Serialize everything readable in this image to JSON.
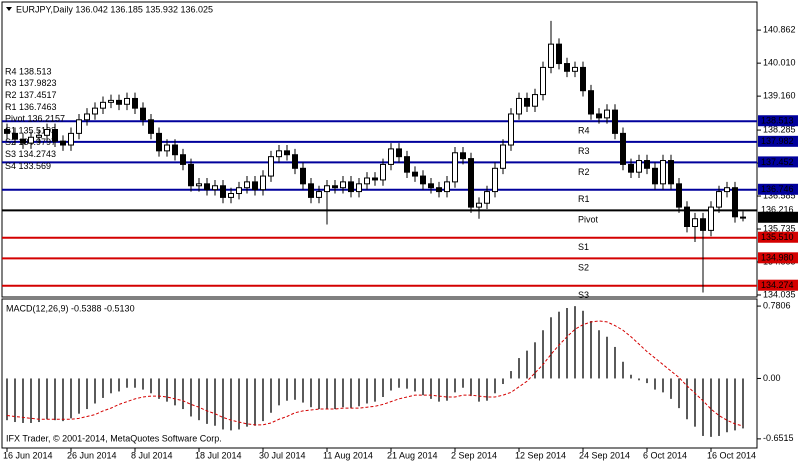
{
  "chart_data": [
    {
      "type": "candlestick",
      "title": "EURJPY,Daily  136.042 136.185 135.932 136.025",
      "categories": [
        "16 Jun 2014",
        null,
        null,
        null,
        null,
        null,
        null,
        null,
        "26 Jun 2014",
        null,
        null,
        null,
        null,
        null,
        null,
        null,
        "8 Jul 2014",
        null,
        null,
        null,
        null,
        null,
        null,
        null,
        "18 Jul 2014",
        null,
        null,
        null,
        null,
        null,
        null,
        null,
        "30 Jul 2014",
        null,
        null,
        null,
        null,
        null,
        null,
        null,
        "11 Aug 2014",
        null,
        null,
        null,
        null,
        null,
        null,
        null,
        "21 Aug 2014",
        null,
        null,
        null,
        null,
        null,
        null,
        null,
        "2 Sep 2014",
        null,
        null,
        null,
        null,
        null,
        null,
        null,
        "12 Sep 2014",
        null,
        null,
        null,
        null,
        null,
        null,
        null,
        "24 Sep 2014",
        null,
        null,
        null,
        null,
        null,
        null,
        null,
        "6 Oct 2014",
        null,
        null,
        null,
        null,
        null,
        null,
        null,
        "16 Oct 2014",
        null,
        null,
        null,
        null
      ],
      "ohlc": [
        [
          138.3,
          138.45,
          138.05,
          138.2
        ],
        [
          138.2,
          138.35,
          137.9,
          138.05
        ],
        [
          138.05,
          138.2,
          137.8,
          137.95
        ],
        [
          137.95,
          138.25,
          137.8,
          138.1
        ],
        [
          138.1,
          138.3,
          137.95,
          138.15
        ],
        [
          138.15,
          138.45,
          138.0,
          138.3
        ],
        [
          138.3,
          138.45,
          137.85,
          138.0
        ],
        [
          138.0,
          138.15,
          137.75,
          137.9
        ],
        [
          137.9,
          138.35,
          137.75,
          138.2
        ],
        [
          138.2,
          138.7,
          138.05,
          138.55
        ],
        [
          138.55,
          138.85,
          138.4,
          138.7
        ],
        [
          138.7,
          139.0,
          138.55,
          138.85
        ],
        [
          138.85,
          139.15,
          138.7,
          139.0
        ],
        [
          139.0,
          139.2,
          138.85,
          139.05
        ],
        [
          139.05,
          139.2,
          138.8,
          138.95
        ],
        [
          138.95,
          139.25,
          138.8,
          139.1
        ],
        [
          139.1,
          139.25,
          138.7,
          138.85
        ],
        [
          138.85,
          139.0,
          138.4,
          138.55
        ],
        [
          138.55,
          138.7,
          138.05,
          138.2
        ],
        [
          138.2,
          138.35,
          137.6,
          137.75
        ],
        [
          137.75,
          138.05,
          137.6,
          137.9
        ],
        [
          137.9,
          138.05,
          137.5,
          137.65
        ],
        [
          137.65,
          137.8,
          137.25,
          137.4
        ],
        [
          137.4,
          137.55,
          136.7,
          136.85
        ],
        [
          136.85,
          137.05,
          136.7,
          136.9
        ],
        [
          136.9,
          137.05,
          136.6,
          136.75
        ],
        [
          136.75,
          137.0,
          136.6,
          136.85
        ],
        [
          136.85,
          137.0,
          136.4,
          136.55
        ],
        [
          136.55,
          136.8,
          136.4,
          136.65
        ],
        [
          136.65,
          136.95,
          136.5,
          136.8
        ],
        [
          136.8,
          137.1,
          136.65,
          136.95
        ],
        [
          136.95,
          137.1,
          136.6,
          136.75
        ],
        [
          136.75,
          137.25,
          136.6,
          137.1
        ],
        [
          137.1,
          137.75,
          136.95,
          137.6
        ],
        [
          137.6,
          137.9,
          137.45,
          137.75
        ],
        [
          137.75,
          137.9,
          137.5,
          137.65
        ],
        [
          137.65,
          137.8,
          137.15,
          137.3
        ],
        [
          137.3,
          137.45,
          136.75,
          136.9
        ],
        [
          136.9,
          137.05,
          136.4,
          136.55
        ],
        [
          136.55,
          136.85,
          136.4,
          136.7
        ],
        [
          136.7,
          137.0,
          135.85,
          136.85
        ],
        [
          136.85,
          137.0,
          136.65,
          136.8
        ],
        [
          136.8,
          137.1,
          136.65,
          136.95
        ],
        [
          136.95,
          137.1,
          136.55,
          136.7
        ],
        [
          136.7,
          137.05,
          136.55,
          136.9
        ],
        [
          136.9,
          137.2,
          136.75,
          137.05
        ],
        [
          137.05,
          137.2,
          136.85,
          137.0
        ],
        [
          137.0,
          137.55,
          136.85,
          137.4
        ],
        [
          137.4,
          137.95,
          137.25,
          137.8
        ],
        [
          137.8,
          137.95,
          137.45,
          137.6
        ],
        [
          137.6,
          137.75,
          137.05,
          137.2
        ],
        [
          137.2,
          137.35,
          136.95,
          137.1
        ],
        [
          137.1,
          137.25,
          136.75,
          136.9
        ],
        [
          136.9,
          137.05,
          136.65,
          136.8
        ],
        [
          136.8,
          136.95,
          136.55,
          136.7
        ],
        [
          136.7,
          137.1,
          136.55,
          136.95
        ],
        [
          136.95,
          137.85,
          136.8,
          137.7
        ],
        [
          137.7,
          137.85,
          137.4,
          137.55
        ],
        [
          137.55,
          137.7,
          136.15,
          136.3
        ],
        [
          136.3,
          136.55,
          136.0,
          136.4
        ],
        [
          136.4,
          136.85,
          136.25,
          136.7
        ],
        [
          136.7,
          137.45,
          136.55,
          137.3
        ],
        [
          137.3,
          138.05,
          137.15,
          137.9
        ],
        [
          137.9,
          138.85,
          137.75,
          138.7
        ],
        [
          138.7,
          139.25,
          138.55,
          139.1
        ],
        [
          139.1,
          139.25,
          138.75,
          138.9
        ],
        [
          138.9,
          139.35,
          138.75,
          139.2
        ],
        [
          139.2,
          140.05,
          139.05,
          139.9
        ],
        [
          139.9,
          141.1,
          139.75,
          140.5
        ],
        [
          140.5,
          140.65,
          139.85,
          140.0
        ],
        [
          140.0,
          140.15,
          139.65,
          139.8
        ],
        [
          139.8,
          140.05,
          139.65,
          139.9
        ],
        [
          139.9,
          140.05,
          139.15,
          139.3
        ],
        [
          139.3,
          139.45,
          138.55,
          138.7
        ],
        [
          138.7,
          138.85,
          138.45,
          138.6
        ],
        [
          138.6,
          138.95,
          138.45,
          138.8
        ],
        [
          138.8,
          138.95,
          138.05,
          138.2
        ],
        [
          138.2,
          138.35,
          137.25,
          137.4
        ],
        [
          137.4,
          137.55,
          137.05,
          137.2
        ],
        [
          137.2,
          137.65,
          137.05,
          137.5
        ],
        [
          137.5,
          137.65,
          137.15,
          137.3
        ],
        [
          137.3,
          137.45,
          136.75,
          136.9
        ],
        [
          136.9,
          137.65,
          136.75,
          137.5
        ],
        [
          137.5,
          137.65,
          136.75,
          136.9
        ],
        [
          136.9,
          137.05,
          136.15,
          136.3
        ],
        [
          136.3,
          136.45,
          135.65,
          135.8
        ],
        [
          135.8,
          136.15,
          135.4,
          136.0
        ],
        [
          136.0,
          136.15,
          134.1,
          135.7
        ],
        [
          135.7,
          136.45,
          135.55,
          136.3
        ],
        [
          136.3,
          136.85,
          136.15,
          136.7
        ],
        [
          136.7,
          136.95,
          136.55,
          136.8
        ],
        [
          136.8,
          136.95,
          135.9,
          136.05
        ],
        [
          136.042,
          136.185,
          135.932,
          136.025
        ]
      ],
      "bull_color": "#ffffff",
      "bear_color": "#000000",
      "ylim": [
        133.983,
        141.586
      ],
      "yticks": [
        {
          "value": 140.862,
          "label": "140.862"
        },
        {
          "value": 140.01,
          "label": "140.010"
        },
        {
          "value": 139.16,
          "label": "139.160"
        },
        138.285,
        137.435,
        136.585,
        135.735,
        134.885,
        134.035
      ],
      "pivots": [
        {
          "name": "R4",
          "value": 138.513,
          "color": "#00009c"
        },
        {
          "name": "R3",
          "value": 137.982,
          "color": "#00009c"
        },
        {
          "name": "R2",
          "value": 137.452,
          "color": "#00009c"
        },
        {
          "name": "R1",
          "value": 136.746,
          "color": "#00009c"
        },
        {
          "name": "Pivot",
          "value": 136.216,
          "color": "#000000"
        },
        {
          "name": "S1",
          "value": 135.51,
          "label": "135.510",
          "color": "#d40000"
        },
        {
          "name": "S2",
          "value": 134.98,
          "label": "134.980",
          "color": "#d40000"
        },
        {
          "name": "S3",
          "value": 134.274,
          "color": "#d40000"
        }
      ],
      "pivot_notes": [
        "R4 138.513",
        "R3 137.9823",
        "R2 137.4517",
        "R1 136.7463",
        "Pivot 136.2157",
        "S1 135.5103",
        "S2 134.9797",
        "S3 134.2743",
        "S4 133.569"
      ]
    },
    {
      "type": "macd",
      "title": "MACD(12,26,9) -0.5388 -0.5130",
      "values": [
        -0.45,
        -0.47,
        -0.48,
        -0.48,
        -0.47,
        -0.44,
        -0.45,
        -0.46,
        -0.43,
        -0.38,
        -0.33,
        -0.27,
        -0.21,
        -0.16,
        -0.14,
        -0.1,
        -0.1,
        -0.12,
        -0.16,
        -0.22,
        -0.25,
        -0.29,
        -0.33,
        -0.41,
        -0.45,
        -0.49,
        -0.51,
        -0.55,
        -0.56,
        -0.55,
        -0.52,
        -0.51,
        -0.46,
        -0.37,
        -0.29,
        -0.24,
        -0.23,
        -0.26,
        -0.31,
        -0.33,
        -0.33,
        -0.33,
        -0.31,
        -0.32,
        -0.3,
        -0.27,
        -0.25,
        -0.2,
        -0.13,
        -0.1,
        -0.11,
        -0.14,
        -0.18,
        -0.22,
        -0.25,
        -0.24,
        -0.15,
        -0.1,
        -0.19,
        -0.25,
        -0.24,
        -0.16,
        -0.06,
        0.08,
        0.22,
        0.3,
        0.39,
        0.52,
        0.66,
        0.72,
        0.76,
        0.78,
        0.73,
        0.62,
        0.52,
        0.45,
        0.34,
        0.18,
        0.04,
        -0.02,
        -0.05,
        -0.12,
        -0.15,
        -0.22,
        -0.32,
        -0.44,
        -0.52,
        -0.62,
        -0.63,
        -0.62,
        -0.58,
        -0.56,
        -0.5388
      ],
      "signal": [
        -0.4,
        -0.41,
        -0.42,
        -0.43,
        -0.44,
        -0.44,
        -0.44,
        -0.44,
        -0.44,
        -0.43,
        -0.41,
        -0.39,
        -0.35,
        -0.32,
        -0.28,
        -0.25,
        -0.22,
        -0.2,
        -0.19,
        -0.19,
        -0.2,
        -0.22,
        -0.24,
        -0.28,
        -0.31,
        -0.35,
        -0.38,
        -0.42,
        -0.45,
        -0.47,
        -0.49,
        -0.5,
        -0.5,
        -0.48,
        -0.44,
        -0.41,
        -0.37,
        -0.35,
        -0.34,
        -0.33,
        -0.33,
        -0.33,
        -0.32,
        -0.32,
        -0.32,
        -0.31,
        -0.3,
        -0.28,
        -0.25,
        -0.22,
        -0.2,
        -0.18,
        -0.18,
        -0.18,
        -0.19,
        -0.2,
        -0.2,
        -0.18,
        -0.18,
        -0.19,
        -0.2,
        -0.2,
        -0.18,
        -0.15,
        -0.09,
        -0.03,
        0.06,
        0.15,
        0.26,
        0.36,
        0.45,
        0.53,
        0.58,
        0.61,
        0.62,
        0.61,
        0.57,
        0.52,
        0.45,
        0.37,
        0.29,
        0.22,
        0.15,
        0.08,
        0.01,
        -0.08,
        -0.16,
        -0.24,
        -0.33,
        -0.4,
        -0.45,
        -0.49,
        -0.513
      ],
      "color": "#000000",
      "signal_color": "#d40000",
      "ylim": [
        -0.75,
        0.857
      ],
      "yticks": [
        0.7806,
        {
          "value": 0,
          "label": "0.00"
        },
        -0.6515
      ]
    }
  ],
  "footer": "IFX Trader, © 2001-2014, MetaQuotes Software Corp."
}
